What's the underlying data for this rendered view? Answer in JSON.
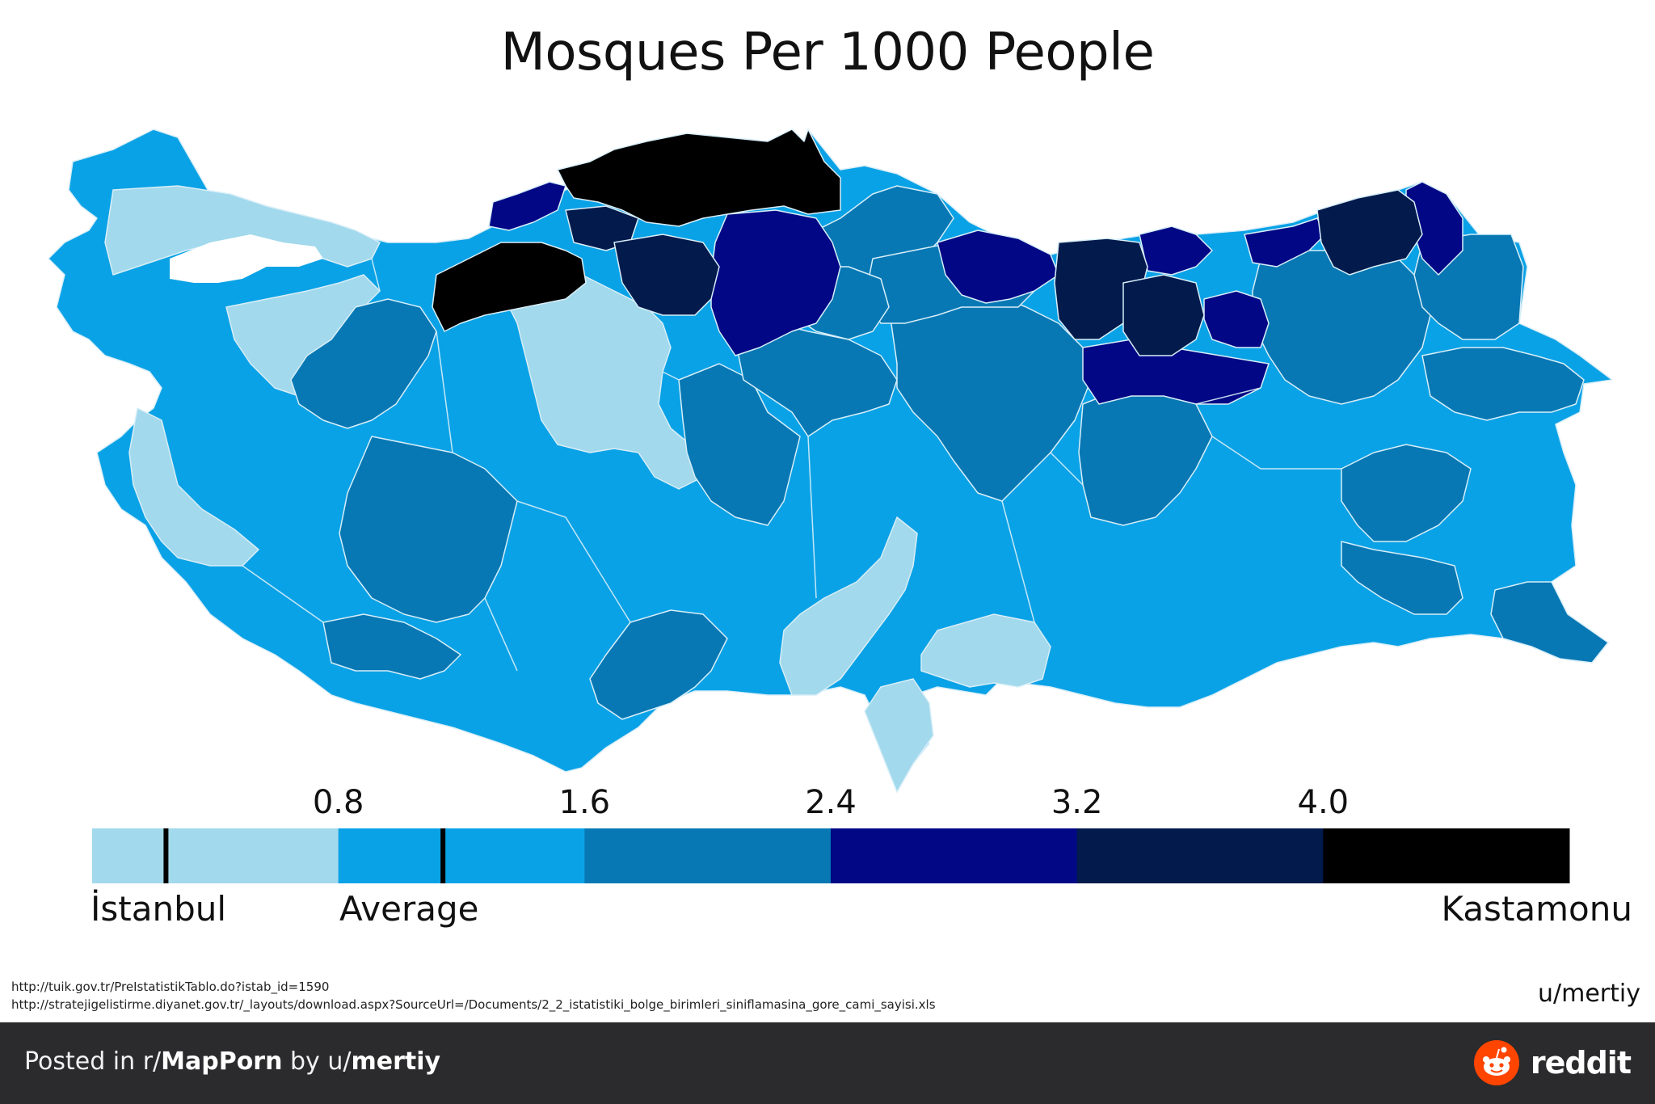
{
  "title": "Mosques Per 1000 People",
  "legend": {
    "ticks": [
      "0.8",
      "1.6",
      "2.4",
      "3.2",
      "4.0"
    ],
    "colors": [
      "#a2d9ec",
      "#0aa2e6",
      "#0778b4",
      "#020885",
      "#021a4c",
      "#000000"
    ],
    "left_label": "İstanbul",
    "middle_label": "Average",
    "right_label": "Kastamonu",
    "istanbul_value": 0.24,
    "average_value": 1.14,
    "scale_max": 4.8
  },
  "map": {
    "country": "Turkey",
    "ocean_color": "#ffffff",
    "border_color": "#d8eef8",
    "class_colors": {
      "c0": "#a2d9ec",
      "c1": "#0aa2e6",
      "c2": "#0778b4",
      "c3": "#020885",
      "c4": "#021a4c",
      "c5": "#000000"
    }
  },
  "sources": [
    "http://tuik.gov.tr/PreIstatistikTablo.do?istab_id=1590",
    "http://stratejigelistirme.diyanet.gov.tr/_layouts/download.aspx?SourceUrl=/Documents/2_2_istatistiki_bolge_birimleri_siniflamasina_gore_cami_sayisi.xls"
  ],
  "author": "u/mertiy",
  "footer": {
    "posted_prefix": "Posted in r/",
    "subreddit": "MapPorn",
    "by_text": " by u/",
    "username": "mertiy",
    "brand": "reddit",
    "brand_color": "#ff4500"
  }
}
